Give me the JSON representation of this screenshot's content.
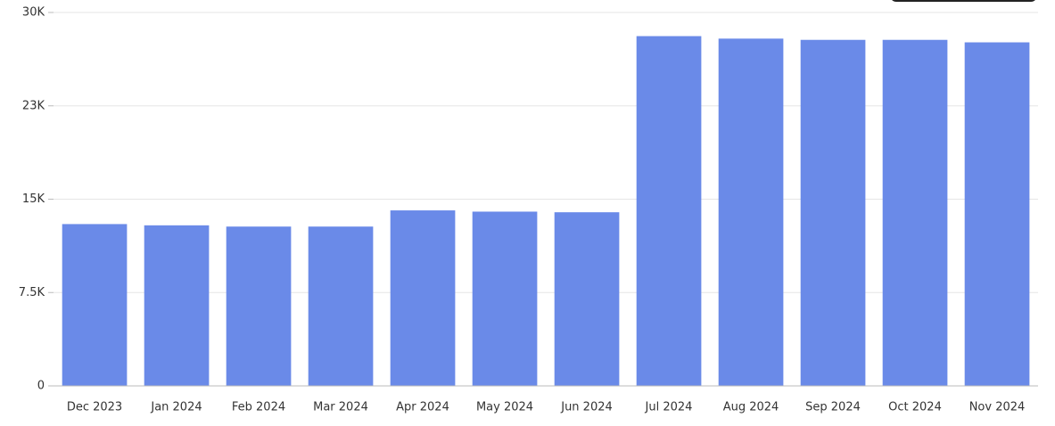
{
  "chart_data": {
    "type": "bar",
    "categories": [
      "Dec 2023",
      "Jan 2024",
      "Feb 2024",
      "Mar 2024",
      "Apr 2024",
      "May 2024",
      "Jun 2024",
      "Jul 2024",
      "Aug 2024",
      "Sep 2024",
      "Oct 2024",
      "Nov 2024"
    ],
    "values": [
      13000,
      12900,
      12800,
      12800,
      14100,
      14000,
      13950,
      28100,
      27900,
      27800,
      27800,
      27600
    ],
    "color": "#6a8ae8",
    "ylim": [
      0,
      30000
    ],
    "yticks": [
      {
        "value": 0,
        "label": "0"
      },
      {
        "value": 7500,
        "label": "7.5K"
      },
      {
        "value": 15000,
        "label": "15K"
      },
      {
        "value": 22500,
        "label": "23K"
      },
      {
        "value": 30000,
        "label": "30K"
      }
    ],
    "grid": true
  }
}
